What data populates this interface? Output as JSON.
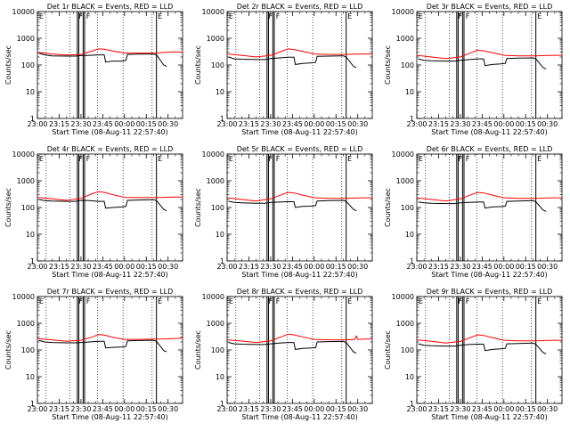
{
  "common": {
    "xlabel": "Start Time (08-Aug-11 22:57:40)",
    "ylabel": "Counts/sec",
    "xlim": [
      0,
      100
    ],
    "ylim": [
      1,
      10000
    ],
    "yscale": "log",
    "x_tick_labels": [
      "23:00",
      "23:15",
      "23:30",
      "23:45",
      "00:00",
      "00:15",
      "00:30"
    ],
    "x_tick_values": [
      0,
      15,
      30,
      45,
      60,
      75,
      90
    ],
    "y_tick_labels": [
      "1",
      "10",
      "100",
      "1000",
      "10000"
    ],
    "y_tick_values": [
      1,
      10,
      100,
      1000,
      10000
    ],
    "series_colors": {
      "events": "#000000",
      "lld": "#ff0000"
    },
    "vertical_solid_lines": [
      27.5,
      28.5,
      31.5,
      32.5,
      82
    ],
    "vertical_dotted_lines": [
      6,
      22.5,
      41.5,
      59,
      79
    ],
    "markers": [
      {
        "text": "E",
        "x": 0.5
      },
      {
        "text": "F",
        "x": 27.8
      },
      {
        "text": "F",
        "x": 33
      },
      {
        "text": "E",
        "x": 82.3
      }
    ]
  },
  "chart_data": [
    {
      "type": "line",
      "title": "Det 1r BLACK = Events, RED = LLD",
      "events": [
        [
          1,
          280
        ],
        [
          5,
          240
        ],
        [
          10,
          220
        ],
        [
          20,
          215
        ],
        [
          26,
          215
        ],
        [
          30,
          225
        ],
        [
          36,
          230
        ],
        [
          42,
          240
        ],
        [
          46,
          240
        ],
        [
          47,
          130
        ],
        [
          52,
          140
        ],
        [
          58,
          140
        ],
        [
          61,
          150
        ],
        [
          62,
          250
        ],
        [
          70,
          255
        ],
        [
          80,
          255
        ],
        [
          82,
          240
        ],
        [
          87,
          100
        ],
        [
          89,
          90
        ]
      ],
      "lld": [
        [
          0,
          300
        ],
        [
          10,
          260
        ],
        [
          20,
          235
        ],
        [
          30,
          250
        ],
        [
          38,
          340
        ],
        [
          42,
          400
        ],
        [
          46,
          390
        ],
        [
          52,
          330
        ],
        [
          60,
          280
        ],
        [
          70,
          280
        ],
        [
          82,
          280
        ],
        [
          88,
          300
        ],
        [
          95,
          310
        ],
        [
          100,
          300
        ]
      ]
    },
    {
      "type": "line",
      "title": "Det 2r BLACK = Events, RED = LLD",
      "events": [
        [
          1,
          200
        ],
        [
          5,
          170
        ],
        [
          10,
          165
        ],
        [
          20,
          160
        ],
        [
          26,
          160
        ],
        [
          30,
          175
        ],
        [
          36,
          185
        ],
        [
          42,
          195
        ],
        [
          46,
          195
        ],
        [
          47,
          105
        ],
        [
          52,
          115
        ],
        [
          58,
          120
        ],
        [
          61,
          125
        ],
        [
          62,
          210
        ],
        [
          70,
          215
        ],
        [
          80,
          220
        ],
        [
          82,
          200
        ],
        [
          87,
          90
        ],
        [
          89,
          80
        ]
      ],
      "lld": [
        [
          0,
          260
        ],
        [
          10,
          230
        ],
        [
          20,
          200
        ],
        [
          30,
          230
        ],
        [
          38,
          330
        ],
        [
          42,
          400
        ],
        [
          46,
          380
        ],
        [
          52,
          320
        ],
        [
          60,
          260
        ],
        [
          70,
          250
        ],
        [
          82,
          250
        ],
        [
          88,
          255
        ],
        [
          95,
          260
        ],
        [
          100,
          260
        ]
      ]
    },
    {
      "type": "line",
      "title": "Det 3r BLACK = Events, RED = LLD",
      "events": [
        [
          1,
          170
        ],
        [
          5,
          150
        ],
        [
          10,
          145
        ],
        [
          20,
          140
        ],
        [
          26,
          140
        ],
        [
          30,
          150
        ],
        [
          36,
          160
        ],
        [
          42,
          170
        ],
        [
          46,
          170
        ],
        [
          47,
          95
        ],
        [
          52,
          105
        ],
        [
          58,
          110
        ],
        [
          61,
          115
        ],
        [
          62,
          175
        ],
        [
          70,
          180
        ],
        [
          80,
          185
        ],
        [
          82,
          170
        ],
        [
          87,
          80
        ],
        [
          89,
          70
        ]
      ],
      "lld": [
        [
          0,
          230
        ],
        [
          10,
          200
        ],
        [
          20,
          175
        ],
        [
          30,
          200
        ],
        [
          38,
          300
        ],
        [
          42,
          360
        ],
        [
          46,
          340
        ],
        [
          52,
          290
        ],
        [
          60,
          230
        ],
        [
          70,
          220
        ],
        [
          82,
          220
        ],
        [
          88,
          225
        ],
        [
          95,
          230
        ],
        [
          100,
          230
        ]
      ]
    },
    {
      "type": "line",
      "title": "Det 4r BLACK = Events, RED = LLD",
      "events": [
        [
          1,
          200
        ],
        [
          5,
          180
        ],
        [
          10,
          175
        ],
        [
          20,
          170
        ],
        [
          26,
          170
        ],
        [
          30,
          185
        ],
        [
          36,
          180
        ],
        [
          42,
          170
        ],
        [
          46,
          170
        ],
        [
          47,
          95
        ],
        [
          52,
          100
        ],
        [
          58,
          105
        ],
        [
          61,
          110
        ],
        [
          62,
          185
        ],
        [
          70,
          190
        ],
        [
          80,
          195
        ],
        [
          82,
          180
        ],
        [
          87,
          85
        ],
        [
          89,
          75
        ]
      ],
      "lld": [
        [
          0,
          240
        ],
        [
          10,
          210
        ],
        [
          20,
          185
        ],
        [
          30,
          220
        ],
        [
          38,
          330
        ],
        [
          42,
          390
        ],
        [
          46,
          370
        ],
        [
          52,
          300
        ],
        [
          60,
          240
        ],
        [
          70,
          235
        ],
        [
          82,
          235
        ],
        [
          88,
          240
        ],
        [
          95,
          245
        ],
        [
          100,
          245
        ]
      ]
    },
    {
      "type": "line",
      "title": "Det 5r BLACK = Events, RED = LLD",
      "events": [
        [
          1,
          170
        ],
        [
          5,
          155
        ],
        [
          10,
          150
        ],
        [
          20,
          145
        ],
        [
          26,
          145
        ],
        [
          30,
          155
        ],
        [
          36,
          160
        ],
        [
          42,
          165
        ],
        [
          46,
          165
        ],
        [
          47,
          100
        ],
        [
          52,
          110
        ],
        [
          58,
          112
        ],
        [
          61,
          118
        ],
        [
          62,
          175
        ],
        [
          70,
          180
        ],
        [
          80,
          185
        ],
        [
          82,
          170
        ],
        [
          87,
          85
        ],
        [
          89,
          75
        ]
      ],
      "lld": [
        [
          0,
          230
        ],
        [
          10,
          200
        ],
        [
          20,
          175
        ],
        [
          30,
          210
        ],
        [
          38,
          310
        ],
        [
          42,
          370
        ],
        [
          46,
          350
        ],
        [
          52,
          290
        ],
        [
          60,
          230
        ],
        [
          70,
          220
        ],
        [
          82,
          220
        ],
        [
          88,
          225
        ],
        [
          95,
          230
        ],
        [
          100,
          230
        ]
      ]
    },
    {
      "type": "line",
      "title": "Det 6r BLACK = Events, RED = LLD",
      "events": [
        [
          1,
          160
        ],
        [
          5,
          150
        ],
        [
          10,
          145
        ],
        [
          20,
          140
        ],
        [
          26,
          140
        ],
        [
          30,
          150
        ],
        [
          36,
          155
        ],
        [
          42,
          160
        ],
        [
          46,
          160
        ],
        [
          47,
          95
        ],
        [
          52,
          105
        ],
        [
          58,
          108
        ],
        [
          61,
          112
        ],
        [
          62,
          170
        ],
        [
          70,
          175
        ],
        [
          80,
          180
        ],
        [
          82,
          165
        ],
        [
          87,
          80
        ],
        [
          89,
          72
        ]
      ],
      "lld": [
        [
          0,
          230
        ],
        [
          10,
          200
        ],
        [
          20,
          175
        ],
        [
          30,
          210
        ],
        [
          38,
          310
        ],
        [
          42,
          370
        ],
        [
          46,
          350
        ],
        [
          52,
          290
        ],
        [
          60,
          230
        ],
        [
          70,
          220
        ],
        [
          82,
          220
        ],
        [
          88,
          225
        ],
        [
          95,
          230
        ],
        [
          100,
          230
        ]
      ]
    },
    {
      "type": "line",
      "title": "Det 7r BLACK = Events, RED = LLD",
      "events": [
        [
          1,
          230
        ],
        [
          5,
          200
        ],
        [
          10,
          190
        ],
        [
          20,
          185
        ],
        [
          26,
          185
        ],
        [
          30,
          190
        ],
        [
          36,
          200
        ],
        [
          42,
          210
        ],
        [
          46,
          210
        ],
        [
          47,
          120
        ],
        [
          52,
          125
        ],
        [
          58,
          130
        ],
        [
          61,
          135
        ],
        [
          62,
          220
        ],
        [
          70,
          225
        ],
        [
          80,
          230
        ],
        [
          82,
          210
        ],
        [
          87,
          95
        ],
        [
          89,
          85
        ]
      ],
      "lld": [
        [
          0,
          270
        ],
        [
          10,
          240
        ],
        [
          20,
          210
        ],
        [
          30,
          230
        ],
        [
          38,
          310
        ],
        [
          42,
          380
        ],
        [
          46,
          360
        ],
        [
          52,
          300
        ],
        [
          60,
          250
        ],
        [
          70,
          250
        ],
        [
          82,
          255
        ],
        [
          88,
          260
        ],
        [
          95,
          270
        ],
        [
          100,
          280
        ]
      ]
    },
    {
      "type": "line",
      "title": "Det 8r BLACK = Events, RED = LLD",
      "events": [
        [
          1,
          190
        ],
        [
          5,
          170
        ],
        [
          10,
          165
        ],
        [
          20,
          160
        ],
        [
          26,
          160
        ],
        [
          30,
          170
        ],
        [
          36,
          180
        ],
        [
          42,
          190
        ],
        [
          46,
          190
        ],
        [
          47,
          105
        ],
        [
          52,
          115
        ],
        [
          58,
          118
        ],
        [
          61,
          122
        ],
        [
          62,
          200
        ],
        [
          70,
          205
        ],
        [
          80,
          210
        ],
        [
          82,
          190
        ],
        [
          87,
          85
        ],
        [
          89,
          75
        ]
      ],
      "lld": [
        [
          0,
          240
        ],
        [
          10,
          215
        ],
        [
          20,
          190
        ],
        [
          30,
          220
        ],
        [
          38,
          320
        ],
        [
          42,
          390
        ],
        [
          46,
          370
        ],
        [
          52,
          310
        ],
        [
          60,
          250
        ],
        [
          70,
          240
        ],
        [
          82,
          240
        ],
        [
          88,
          250
        ],
        [
          89,
          330
        ],
        [
          90,
          250
        ],
        [
          95,
          255
        ],
        [
          100,
          260
        ]
      ]
    },
    {
      "type": "line",
      "title": "Det 9r BLACK = Events, RED = LLD",
      "events": [
        [
          1,
          170
        ],
        [
          5,
          150
        ],
        [
          10,
          145
        ],
        [
          20,
          140
        ],
        [
          26,
          140
        ],
        [
          30,
          150
        ],
        [
          36,
          160
        ],
        [
          42,
          165
        ],
        [
          46,
          165
        ],
        [
          47,
          95
        ],
        [
          52,
          105
        ],
        [
          58,
          110
        ],
        [
          61,
          115
        ],
        [
          62,
          170
        ],
        [
          70,
          175
        ],
        [
          80,
          180
        ],
        [
          82,
          165
        ],
        [
          87,
          80
        ],
        [
          89,
          72
        ]
      ],
      "lld": [
        [
          0,
          240
        ],
        [
          10,
          210
        ],
        [
          20,
          180
        ],
        [
          30,
          210
        ],
        [
          38,
          310
        ],
        [
          42,
          370
        ],
        [
          46,
          350
        ],
        [
          52,
          290
        ],
        [
          60,
          230
        ],
        [
          70,
          220
        ],
        [
          82,
          220
        ],
        [
          88,
          225
        ],
        [
          95,
          230
        ],
        [
          100,
          230
        ]
      ]
    }
  ]
}
